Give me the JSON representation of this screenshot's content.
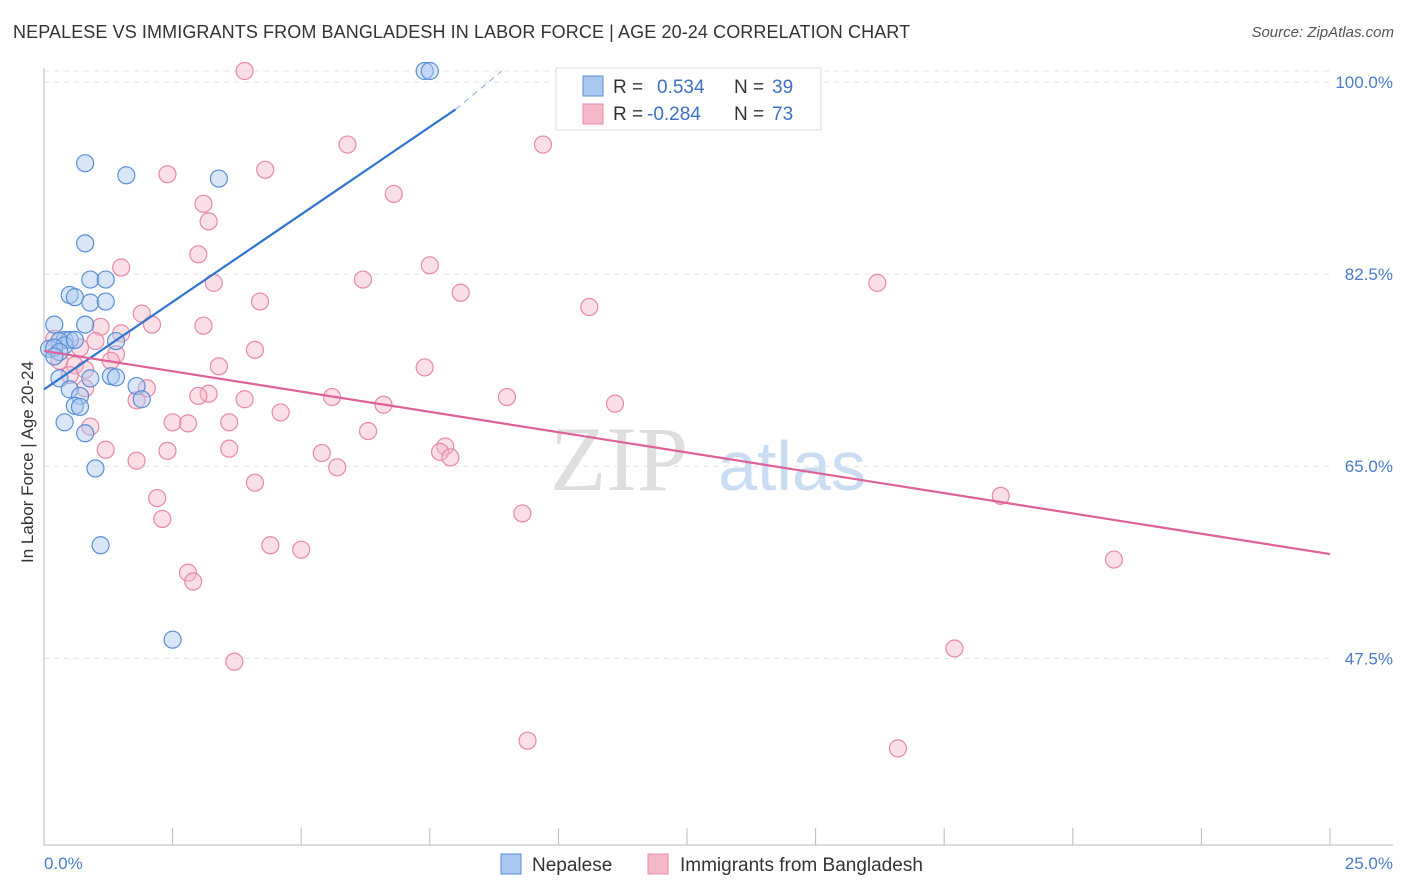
{
  "title": "NEPALESE VS IMMIGRANTS FROM BANGLADESH IN LABOR FORCE | AGE 20-24 CORRELATION CHART",
  "source": "Source: ZipAtlas.com",
  "watermark": {
    "zip": "ZIP",
    "atlas": "atlas"
  },
  "colors": {
    "blue_fill": "#a8c8f0",
    "blue_stroke": "#5a8fd6",
    "blue_line": "#2f74d0",
    "pink_fill": "#f5b8c8",
    "pink_stroke": "#e888a8",
    "pink_line": "#e0609a",
    "grid": "#e2e2e2",
    "axis_text": "#4a7bc8"
  },
  "legend": {
    "rows": [
      {
        "r_label": "R =",
        "r_value": "0.534",
        "n_label": "N =",
        "n_value": "39"
      },
      {
        "r_label": "R =",
        "r_value": "-0.284",
        "n_label": "N =",
        "n_value": "73"
      }
    ]
  },
  "bottom_legend": [
    "Nepalese",
    "Immigrants from Bangladesh"
  ],
  "chart_data": {
    "type": "scatter",
    "title": "NEPALESE VS IMMIGRANTS FROM BANGLADESH IN LABOR FORCE | AGE 20-24 CORRELATION CHART",
    "xlabel": "",
    "ylabel": "In Labor Force | Age 20-24",
    "xlim": [
      0,
      25
    ],
    "ylim": [
      30.5,
      102
    ],
    "x_tick_labels": [
      "0.0%",
      "25.0%"
    ],
    "y_ticks": [
      47.5,
      65.0,
      82.5,
      100.0
    ],
    "y_tick_labels": [
      "47.5%",
      "65.0%",
      "82.5%",
      "100.0%"
    ],
    "series": [
      {
        "name": "Nepalese",
        "r": 0.534,
        "n": 39,
        "trend": {
          "x0": 0.0,
          "y0": 72.0,
          "x1": 8.0,
          "y1": 97.5,
          "dash_to_x": 8.9,
          "dash_to_y": 101.0
        },
        "points": [
          [
            7.4,
            101.0
          ],
          [
            7.5,
            101.0
          ],
          [
            0.8,
            92.6
          ],
          [
            1.6,
            91.5
          ],
          [
            3.4,
            91.2
          ],
          [
            0.8,
            85.3
          ],
          [
            0.9,
            82.0
          ],
          [
            1.2,
            82.0
          ],
          [
            0.5,
            80.6
          ],
          [
            0.6,
            80.4
          ],
          [
            0.9,
            79.9
          ],
          [
            1.2,
            80.0
          ],
          [
            0.2,
            77.9
          ],
          [
            0.8,
            77.9
          ],
          [
            0.4,
            76.5
          ],
          [
            0.5,
            76.5
          ],
          [
            0.3,
            76.4
          ],
          [
            0.1,
            75.7
          ],
          [
            0.4,
            76.0
          ],
          [
            0.2,
            75.8
          ],
          [
            0.3,
            75.4
          ],
          [
            0.6,
            76.5
          ],
          [
            1.4,
            76.4
          ],
          [
            0.9,
            73.0
          ],
          [
            1.3,
            73.2
          ],
          [
            1.4,
            73.1
          ],
          [
            0.3,
            73.0
          ],
          [
            1.8,
            72.3
          ],
          [
            0.5,
            72.0
          ],
          [
            1.9,
            71.1
          ],
          [
            0.7,
            71.4
          ],
          [
            0.6,
            70.5
          ],
          [
            0.7,
            70.4
          ],
          [
            0.4,
            69.0
          ],
          [
            0.8,
            68.0
          ],
          [
            1.0,
            64.8
          ],
          [
            1.1,
            57.8
          ],
          [
            2.5,
            49.2
          ],
          [
            0.2,
            75.0
          ]
        ]
      },
      {
        "name": "Immigrants from Bangladesh",
        "r": -0.284,
        "n": 73,
        "trend": {
          "x0": 0.0,
          "y0": 75.5,
          "x1": 25.0,
          "y1": 57.0
        },
        "points": [
          [
            3.9,
            101.0
          ],
          [
            5.9,
            94.3
          ],
          [
            9.7,
            94.3
          ],
          [
            4.3,
            92.0
          ],
          [
            2.4,
            91.6
          ],
          [
            6.8,
            89.8
          ],
          [
            3.1,
            88.9
          ],
          [
            3.2,
            87.3
          ],
          [
            3.0,
            84.3
          ],
          [
            7.5,
            83.3
          ],
          [
            1.5,
            83.1
          ],
          [
            6.2,
            82.0
          ],
          [
            3.3,
            81.7
          ],
          [
            16.2,
            81.7
          ],
          [
            8.1,
            80.8
          ],
          [
            4.2,
            80.0
          ],
          [
            10.6,
            79.5
          ],
          [
            1.9,
            78.9
          ],
          [
            2.1,
            77.9
          ],
          [
            3.1,
            77.8
          ],
          [
            1.1,
            77.7
          ],
          [
            1.5,
            77.1
          ],
          [
            1.0,
            76.4
          ],
          [
            4.1,
            75.6
          ],
          [
            1.4,
            75.2
          ],
          [
            0.3,
            74.6
          ],
          [
            0.6,
            74.2
          ],
          [
            3.4,
            74.1
          ],
          [
            7.4,
            74.0
          ],
          [
            0.5,
            73.3
          ],
          [
            0.8,
            73.8
          ],
          [
            2.0,
            72.1
          ],
          [
            0.8,
            72.1
          ],
          [
            3.2,
            71.6
          ],
          [
            3.0,
            71.4
          ],
          [
            5.6,
            71.3
          ],
          [
            3.9,
            71.1
          ],
          [
            1.8,
            71.0
          ],
          [
            11.1,
            70.7
          ],
          [
            2.5,
            69.0
          ],
          [
            3.6,
            69.0
          ],
          [
            6.3,
            68.2
          ],
          [
            0.9,
            68.6
          ],
          [
            7.8,
            66.8
          ],
          [
            3.6,
            66.6
          ],
          [
            2.4,
            66.4
          ],
          [
            1.2,
            66.5
          ],
          [
            7.7,
            66.3
          ],
          [
            5.4,
            66.2
          ],
          [
            1.8,
            65.5
          ],
          [
            7.9,
            65.8
          ],
          [
            5.7,
            64.9
          ],
          [
            4.1,
            63.5
          ],
          [
            2.2,
            62.1
          ],
          [
            18.6,
            62.3
          ],
          [
            9.3,
            60.7
          ],
          [
            2.3,
            60.2
          ],
          [
            4.4,
            57.8
          ],
          [
            5.0,
            57.4
          ],
          [
            20.8,
            56.5
          ],
          [
            2.8,
            55.3
          ],
          [
            2.9,
            54.5
          ],
          [
            17.7,
            48.4
          ],
          [
            3.7,
            47.2
          ],
          [
            9.4,
            40.0
          ],
          [
            16.6,
            39.3
          ],
          [
            0.2,
            76.6
          ],
          [
            0.7,
            75.8
          ],
          [
            1.3,
            74.6
          ],
          [
            4.6,
            69.9
          ],
          [
            2.8,
            68.9
          ],
          [
            6.6,
            70.6
          ],
          [
            9.0,
            71.3
          ]
        ]
      }
    ]
  }
}
